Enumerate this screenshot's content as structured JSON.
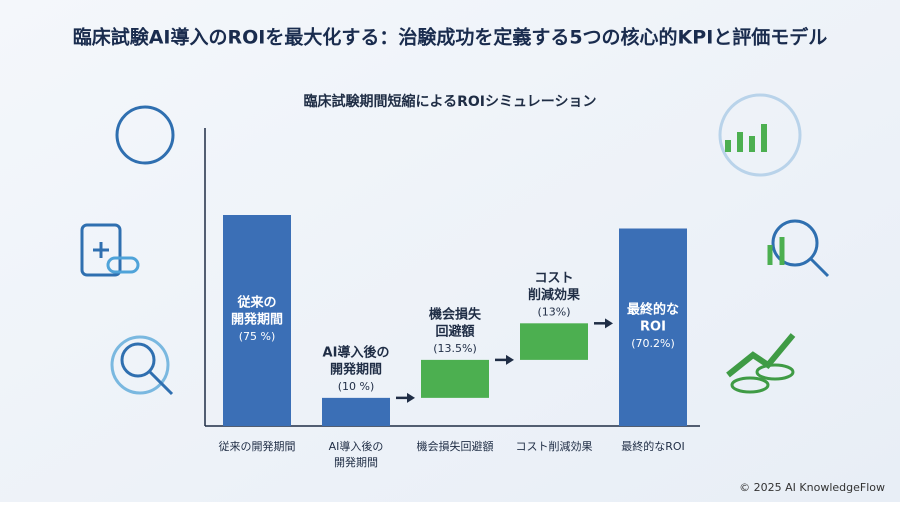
{
  "chart_data": {
    "type": "waterfall",
    "title": "臨床試験AI導入のROIを最大化する：治験成功を定義する5つの核心的KPIと評価モデル",
    "subtitle": "臨床試験期間短縮によるROIシミュレーション",
    "categories": [
      "従来の開発期間",
      "AI導入後の\n開発期間",
      "機会損失回避額",
      "コスト削減効果",
      "最終的なROI"
    ],
    "bar_labels": [
      [
        "従来の",
        "開発期間"
      ],
      [
        "AI導入後の",
        "開発期間"
      ],
      [
        "機会損失",
        "回避額"
      ],
      [
        "コスト",
        "削減効果"
      ],
      [
        "最終的な",
        "ROI"
      ]
    ],
    "values": [
      75,
      10,
      13.5,
      13,
      70.2
    ],
    "value_labels": [
      "(75 %)",
      "(10 %)",
      "(13.5%)",
      "(13%)",
      "(70.2%)"
    ],
    "colors": [
      "#3b6fb6",
      "#3b6fb6",
      "#4caf50",
      "#4caf50",
      "#3b6fb6"
    ],
    "footer": "© 2025 AI KnowledgeFlow"
  }
}
